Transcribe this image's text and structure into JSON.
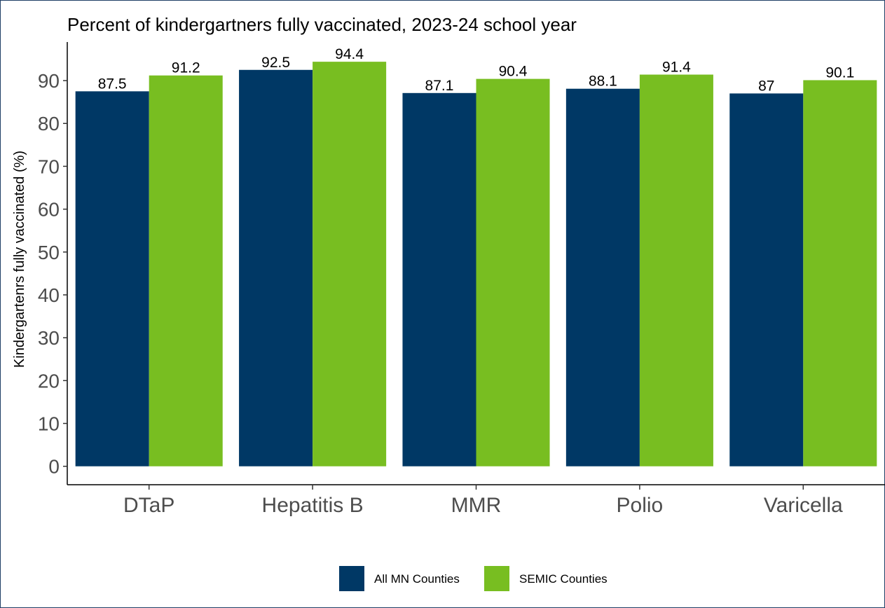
{
  "chart_data": {
    "type": "bar",
    "title": "Percent of kindergartners fully vaccinated, 2023-24 school year",
    "xlabel": "",
    "ylabel": "Kindergartenrs fully vaccinated (%)",
    "categories": [
      "DTaP",
      "Hepatitis B",
      "MMR",
      "Polio",
      "Varicella"
    ],
    "series": [
      {
        "name": "All MN Counties",
        "color": "#003865",
        "values": [
          87.5,
          92.5,
          87.1,
          88.1,
          87
        ]
      },
      {
        "name": "SEMIC Counties",
        "color": "#78BE21",
        "values": [
          91.2,
          94.4,
          90.4,
          91.4,
          90.1
        ]
      }
    ],
    "data_labels": [
      [
        "87.5",
        "92.5",
        "87.1",
        "88.1",
        "87"
      ],
      [
        "91.2",
        "94.4",
        "90.4",
        "91.4",
        "90.1"
      ]
    ],
    "yticks": [
      0,
      10,
      20,
      30,
      40,
      50,
      60,
      70,
      80,
      90
    ],
    "ylim": [
      -4.3,
      99
    ],
    "grid": false,
    "legend_position": "bottom"
  }
}
